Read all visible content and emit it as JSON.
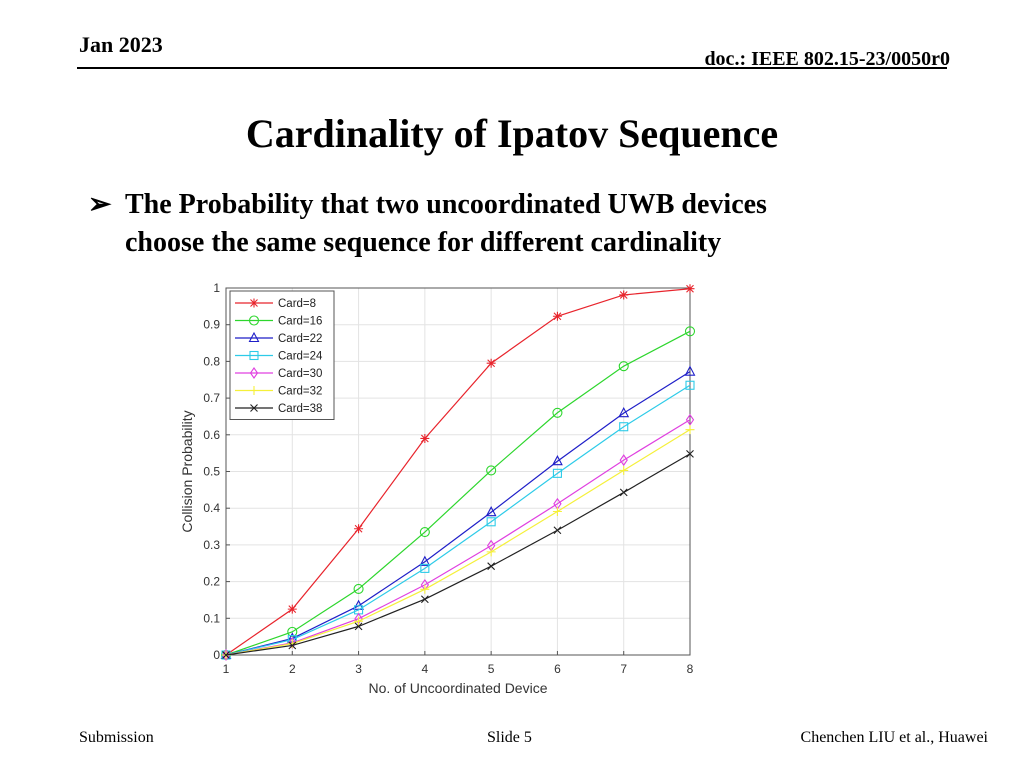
{
  "header": {
    "date": "Jan 2023",
    "doc": "doc.: IEEE 802.15-23/0050r0"
  },
  "slide": {
    "title": "Cardinality of Ipatov Sequence",
    "bullet_marker": "➢",
    "bullet_line1": "The Probability that two uncoordinated UWB devices",
    "bullet_line2": "choose the same sequence for different cardinality"
  },
  "footer": {
    "left": "Submission",
    "center": "Slide 5",
    "right": "Chenchen LIU et al., Huawei"
  },
  "chart_data": {
    "type": "line",
    "xlabel": "No. of Uncoordinated Device",
    "ylabel": "Collision Probability",
    "x": [
      1,
      2,
      3,
      4,
      5,
      6,
      7,
      8
    ],
    "xlim": [
      1,
      8
    ],
    "ylim": [
      0,
      1
    ],
    "xticks": [
      1,
      2,
      3,
      4,
      5,
      6,
      7,
      8
    ],
    "yticks": [
      0,
      0.1,
      0.2,
      0.3,
      0.4,
      0.5,
      0.6,
      0.7,
      0.8,
      0.9,
      1
    ],
    "grid": true,
    "legend_position": "top-left",
    "series": [
      {
        "name": "Card=8",
        "color": "#e8242c",
        "marker": "star",
        "values": [
          0,
          0.125,
          0.344,
          0.59,
          0.795,
          0.923,
          0.981,
          0.998
        ]
      },
      {
        "name": "Card=16",
        "color": "#2dd62d",
        "marker": "circle",
        "values": [
          0,
          0.063,
          0.18,
          0.335,
          0.503,
          0.66,
          0.787,
          0.882
        ]
      },
      {
        "name": "Card=22",
        "color": "#1f1fc8",
        "marker": "triangle",
        "values": [
          0,
          0.045,
          0.134,
          0.254,
          0.389,
          0.528,
          0.659,
          0.772
        ]
      },
      {
        "name": "Card=24",
        "color": "#2dcbe8",
        "marker": "square",
        "values": [
          0,
          0.042,
          0.123,
          0.236,
          0.363,
          0.495,
          0.622,
          0.735
        ]
      },
      {
        "name": "Card=30",
        "color": "#e040e0",
        "marker": "diamond",
        "values": [
          0,
          0.033,
          0.099,
          0.191,
          0.298,
          0.412,
          0.531,
          0.641
        ]
      },
      {
        "name": "Card=32",
        "color": "#f5f03a",
        "marker": "plus",
        "values": [
          0,
          0.031,
          0.092,
          0.179,
          0.281,
          0.391,
          0.503,
          0.614
        ]
      },
      {
        "name": "Card=38",
        "color": "#222222",
        "marker": "x",
        "values": [
          0,
          0.026,
          0.078,
          0.152,
          0.242,
          0.34,
          0.443,
          0.548
        ]
      }
    ]
  }
}
